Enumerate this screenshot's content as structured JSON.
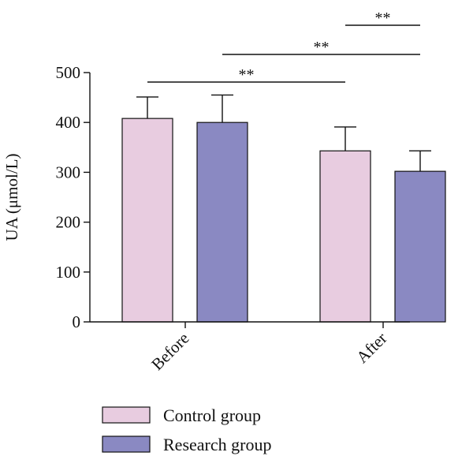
{
  "chart_data": {
    "type": "bar",
    "categories": [
      "Before",
      "After"
    ],
    "series": [
      {
        "name": "Control group",
        "color": "#e8cce0",
        "values": [
          408,
          343
        ],
        "errors": [
          43,
          48
        ]
      },
      {
        "name": "Research group",
        "color": "#8a89c2",
        "values": [
          400,
          302
        ],
        "errors": [
          55,
          41
        ]
      }
    ],
    "ylabel": "UA (μmol/L)",
    "xlabel": "",
    "ylim": [
      0,
      500
    ],
    "yticks": [
      "0",
      "100",
      "200",
      "300",
      "400",
      "500"
    ],
    "significance": [
      {
        "label": "**",
        "from": {
          "category": 0,
          "series": 0
        },
        "to": {
          "category": 1,
          "series": 0
        }
      },
      {
        "label": "**",
        "from": {
          "category": 0,
          "series": 1
        },
        "to": {
          "category": 1,
          "series": 1
        }
      },
      {
        "label": "**",
        "from": {
          "category": 1,
          "series": 0
        },
        "to": {
          "category": 1,
          "series": 1
        }
      }
    ],
    "legend_position": "bottom-left",
    "grid": false
  }
}
